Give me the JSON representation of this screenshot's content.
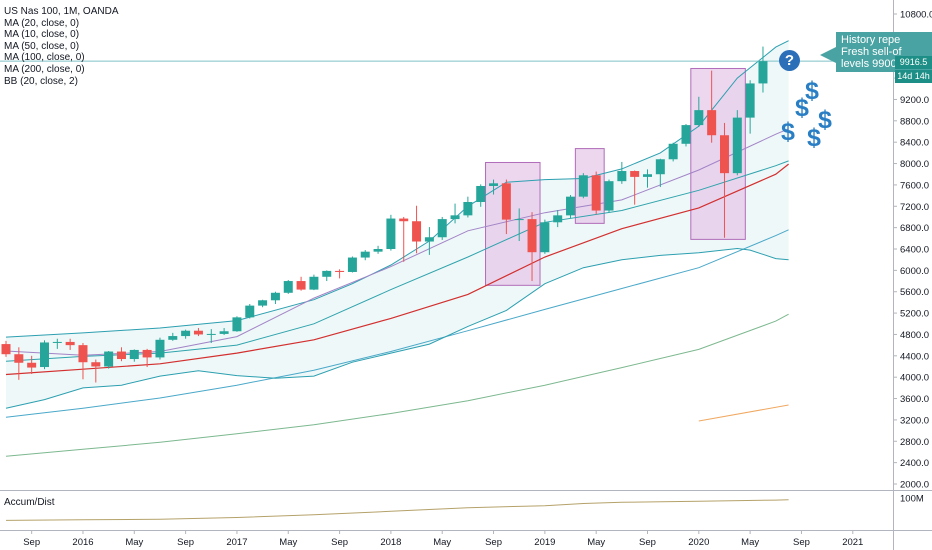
{
  "legend": [
    "US Nas 100, 1M, OANDA",
    "MA (20, close, 0)",
    "MA (10, close, 0)",
    "MA (50, close, 0)",
    "MA (100, close, 0)",
    "MA (200, close, 0)",
    "BB (20, close, 2)"
  ],
  "indicator_title": "Accum/Dist",
  "annotation_text": [
    "History repe",
    "Fresh sell-of",
    "levels 9900"
  ],
  "price_badge": "9916.5",
  "timer_badge": "14d 14h",
  "question_icon": "?",
  "dollar_glyph": "$",
  "colors": {
    "up": "#26a69a",
    "down": "#ef5350",
    "ma20": "#2fa3ad",
    "ma10": "#a283c7",
    "ma50": "#d32f2f",
    "ma100": "#4aa8c9",
    "ma200": "#7cb88f",
    "bb": "#2c9fb0",
    "bb_fill": "#eef8f8",
    "highlight_fill": "#e6c9ea",
    "highlight_stroke": "#b06bb8",
    "accum": "#b5a26a",
    "icon": "#2a7fc4"
  },
  "chart_data": {
    "type": "candlestick",
    "y_ticks": [
      2000,
      2400,
      2800,
      3200,
      3600,
      4000,
      4400,
      4800,
      5200,
      5600,
      6000,
      6400,
      6800,
      7200,
      7600,
      8000,
      8400,
      8800,
      9200,
      9600,
      10000,
      10400,
      10800
    ],
    "ylim": [
      1800,
      10900
    ],
    "x_ticks": [
      "Sep",
      "2016",
      "May",
      "Sep",
      "2017",
      "May",
      "Sep",
      "2018",
      "May",
      "Sep",
      "2019",
      "May",
      "Sep",
      "2020",
      "May",
      "Sep",
      "2021"
    ],
    "x_tick_months": [
      "2015-09",
      "2016-01",
      "2016-05",
      "2016-09",
      "2017-01",
      "2017-05",
      "2017-09",
      "2018-01",
      "2018-05",
      "2018-09",
      "2019-01",
      "2019-05",
      "2019-09",
      "2020-01",
      "2020-05",
      "2020-09",
      "2021-01"
    ],
    "candles": [
      {
        "month": "2015-07",
        "o": 4620,
        "h": 4680,
        "l": 4380,
        "c": 4430
      },
      {
        "month": "2015-08",
        "o": 4430,
        "h": 4560,
        "l": 3950,
        "c": 4270
      },
      {
        "month": "2015-09",
        "o": 4270,
        "h": 4400,
        "l": 4060,
        "c": 4180
      },
      {
        "month": "2015-10",
        "o": 4190,
        "h": 4690,
        "l": 4150,
        "c": 4650
      },
      {
        "month": "2015-11",
        "o": 4650,
        "h": 4720,
        "l": 4530,
        "c": 4660
      },
      {
        "month": "2015-12",
        "o": 4660,
        "h": 4720,
        "l": 4510,
        "c": 4600
      },
      {
        "month": "2016-01",
        "o": 4600,
        "h": 4640,
        "l": 3960,
        "c": 4280
      },
      {
        "month": "2016-02",
        "o": 4280,
        "h": 4330,
        "l": 3900,
        "c": 4200
      },
      {
        "month": "2016-03",
        "o": 4200,
        "h": 4490,
        "l": 4160,
        "c": 4480
      },
      {
        "month": "2016-04",
        "o": 4480,
        "h": 4560,
        "l": 4300,
        "c": 4340
      },
      {
        "month": "2016-05",
        "o": 4340,
        "h": 4520,
        "l": 4290,
        "c": 4510
      },
      {
        "month": "2016-06",
        "o": 4510,
        "h": 4530,
        "l": 4190,
        "c": 4370
      },
      {
        "month": "2016-07",
        "o": 4370,
        "h": 4740,
        "l": 4330,
        "c": 4700
      },
      {
        "month": "2016-08",
        "o": 4700,
        "h": 4830,
        "l": 4680,
        "c": 4770
      },
      {
        "month": "2016-09",
        "o": 4770,
        "h": 4890,
        "l": 4720,
        "c": 4870
      },
      {
        "month": "2016-10",
        "o": 4870,
        "h": 4920,
        "l": 4770,
        "c": 4800
      },
      {
        "month": "2016-11",
        "o": 4800,
        "h": 4900,
        "l": 4640,
        "c": 4810
      },
      {
        "month": "2016-12",
        "o": 4810,
        "h": 4920,
        "l": 4790,
        "c": 4860
      },
      {
        "month": "2017-01",
        "o": 4860,
        "h": 5140,
        "l": 4850,
        "c": 5120
      },
      {
        "month": "2017-02",
        "o": 5120,
        "h": 5370,
        "l": 5100,
        "c": 5340
      },
      {
        "month": "2017-03",
        "o": 5340,
        "h": 5450,
        "l": 5310,
        "c": 5440
      },
      {
        "month": "2017-04",
        "o": 5440,
        "h": 5600,
        "l": 5370,
        "c": 5580
      },
      {
        "month": "2017-05",
        "o": 5580,
        "h": 5820,
        "l": 5560,
        "c": 5800
      },
      {
        "month": "2017-06",
        "o": 5800,
        "h": 5880,
        "l": 5620,
        "c": 5640
      },
      {
        "month": "2017-07",
        "o": 5640,
        "h": 5920,
        "l": 5630,
        "c": 5880
      },
      {
        "month": "2017-08",
        "o": 5880,
        "h": 6000,
        "l": 5800,
        "c": 5990
      },
      {
        "month": "2017-09",
        "o": 5990,
        "h": 6020,
        "l": 5850,
        "c": 5970
      },
      {
        "month": "2017-10",
        "o": 5970,
        "h": 6260,
        "l": 5960,
        "c": 6240
      },
      {
        "month": "2017-11",
        "o": 6240,
        "h": 6380,
        "l": 6190,
        "c": 6350
      },
      {
        "month": "2017-12",
        "o": 6350,
        "h": 6460,
        "l": 6310,
        "c": 6400
      },
      {
        "month": "2018-01",
        "o": 6400,
        "h": 7040,
        "l": 6370,
        "c": 6970
      },
      {
        "month": "2018-02",
        "o": 6970,
        "h": 7000,
        "l": 6160,
        "c": 6920
      },
      {
        "month": "2018-03",
        "o": 6920,
        "h": 7210,
        "l": 6320,
        "c": 6540
      },
      {
        "month": "2018-04",
        "o": 6540,
        "h": 6810,
        "l": 6290,
        "c": 6620
      },
      {
        "month": "2018-05",
        "o": 6620,
        "h": 7000,
        "l": 6570,
        "c": 6960
      },
      {
        "month": "2018-06",
        "o": 6960,
        "h": 7250,
        "l": 6880,
        "c": 7030
      },
      {
        "month": "2018-07",
        "o": 7030,
        "h": 7380,
        "l": 6990,
        "c": 7280
      },
      {
        "month": "2018-08",
        "o": 7280,
        "h": 7610,
        "l": 7190,
        "c": 7580
      },
      {
        "month": "2018-09",
        "o": 7580,
        "h": 7700,
        "l": 7420,
        "c": 7630
      },
      {
        "month": "2018-10",
        "o": 7630,
        "h": 7700,
        "l": 6680,
        "c": 6950
      },
      {
        "month": "2018-11",
        "o": 6950,
        "h": 7160,
        "l": 6550,
        "c": 6960
      },
      {
        "month": "2018-12",
        "o": 6960,
        "h": 7090,
        "l": 5800,
        "c": 6340
      },
      {
        "month": "2019-01",
        "o": 6340,
        "h": 6950,
        "l": 6310,
        "c": 6900
      },
      {
        "month": "2019-02",
        "o": 6900,
        "h": 7130,
        "l": 6810,
        "c": 7030
      },
      {
        "month": "2019-03",
        "o": 7030,
        "h": 7410,
        "l": 6970,
        "c": 7380
      },
      {
        "month": "2019-04",
        "o": 7380,
        "h": 7820,
        "l": 7350,
        "c": 7780
      },
      {
        "month": "2019-05",
        "o": 7780,
        "h": 7850,
        "l": 7050,
        "c": 7120
      },
      {
        "month": "2019-06",
        "o": 7120,
        "h": 7700,
        "l": 7090,
        "c": 7670
      },
      {
        "month": "2019-07",
        "o": 7670,
        "h": 8030,
        "l": 7620,
        "c": 7860
      },
      {
        "month": "2019-08",
        "o": 7860,
        "h": 7870,
        "l": 7230,
        "c": 7750
      },
      {
        "month": "2019-09",
        "o": 7750,
        "h": 7890,
        "l": 7550,
        "c": 7800
      },
      {
        "month": "2019-10",
        "o": 7800,
        "h": 8090,
        "l": 7560,
        "c": 8080
      },
      {
        "month": "2019-11",
        "o": 8080,
        "h": 8390,
        "l": 8040,
        "c": 8370
      },
      {
        "month": "2019-12",
        "o": 8370,
        "h": 8740,
        "l": 8320,
        "c": 8720
      },
      {
        "month": "2020-01",
        "o": 8720,
        "h": 9250,
        "l": 8690,
        "c": 9000
      },
      {
        "month": "2020-02",
        "o": 9000,
        "h": 9740,
        "l": 8390,
        "c": 8530
      },
      {
        "month": "2020-03",
        "o": 8530,
        "h": 8760,
        "l": 6610,
        "c": 7820
      },
      {
        "month": "2020-04",
        "o": 7820,
        "h": 9000,
        "l": 7780,
        "c": 8860
      },
      {
        "month": "2020-05",
        "o": 8860,
        "h": 9560,
        "l": 8560,
        "c": 9500
      },
      {
        "month": "2020-06",
        "o": 9500,
        "h": 10190,
        "l": 9330,
        "c": 9916.5
      }
    ],
    "highlight_boxes": [
      {
        "from": "2018-09",
        "to": "2018-12",
        "ymin": 5720,
        "ymax": 8020
      },
      {
        "from": "2019-04",
        "to": "2019-05",
        "ymin": 6880,
        "ymax": 8280
      },
      {
        "from": "2020-01",
        "to": "2020-04",
        "ymin": 6580,
        "ymax": 9780
      }
    ],
    "price_line": 9916.5,
    "ma10": [
      [
        0,
        4490
      ],
      [
        6,
        4410
      ],
      [
        12,
        4480
      ],
      [
        18,
        4760
      ],
      [
        24,
        5480
      ],
      [
        30,
        6070
      ],
      [
        36,
        6740
      ],
      [
        42,
        7080
      ],
      [
        48,
        7320
      ],
      [
        54,
        7880
      ],
      [
        60,
        8550
      ],
      [
        61,
        8650
      ]
    ],
    "ma20": [
      [
        0,
        4300
      ],
      [
        6,
        4390
      ],
      [
        12,
        4450
      ],
      [
        18,
        4600
      ],
      [
        24,
        5000
      ],
      [
        30,
        5640
      ],
      [
        36,
        6250
      ],
      [
        42,
        6900
      ],
      [
        48,
        7120
      ],
      [
        54,
        7500
      ],
      [
        60,
        7960
      ],
      [
        61,
        8050
      ]
    ],
    "ma50": [
      [
        0,
        4050
      ],
      [
        6,
        4150
      ],
      [
        12,
        4250
      ],
      [
        18,
        4450
      ],
      [
        24,
        4700
      ],
      [
        30,
        5100
      ],
      [
        36,
        5550
      ],
      [
        42,
        6250
      ],
      [
        48,
        6780
      ],
      [
        54,
        7170
      ],
      [
        60,
        7800
      ],
      [
        61,
        7990
      ]
    ],
    "ma100": [
      [
        0,
        3250
      ],
      [
        6,
        3420
      ],
      [
        12,
        3610
      ],
      [
        18,
        3850
      ],
      [
        24,
        4130
      ],
      [
        30,
        4480
      ],
      [
        36,
        4870
      ],
      [
        42,
        5270
      ],
      [
        48,
        5660
      ],
      [
        54,
        6050
      ],
      [
        60,
        6650
      ],
      [
        61,
        6760
      ]
    ],
    "ma200": [
      [
        0,
        2520
      ],
      [
        6,
        2650
      ],
      [
        12,
        2780
      ],
      [
        18,
        2940
      ],
      [
        24,
        3110
      ],
      [
        30,
        3320
      ],
      [
        36,
        3560
      ],
      [
        42,
        3850
      ],
      [
        48,
        4180
      ],
      [
        54,
        4520
      ],
      [
        60,
        5050
      ],
      [
        61,
        5180
      ]
    ],
    "ma_orange": [
      [
        54,
        3180
      ],
      [
        61,
        3480
      ]
    ],
    "bb_upper": [
      [
        0,
        4750
      ],
      [
        6,
        4830
      ],
      [
        12,
        4920
      ],
      [
        18,
        5060
      ],
      [
        24,
        5450
      ],
      [
        27,
        5750
      ],
      [
        30,
        6100
      ],
      [
        33,
        6550
      ],
      [
        36,
        7200
      ],
      [
        39,
        7650
      ],
      [
        42,
        7700
      ],
      [
        45,
        7720
      ],
      [
        48,
        7900
      ],
      [
        51,
        8200
      ],
      [
        54,
        8700
      ],
      [
        57,
        9600
      ],
      [
        60,
        10180
      ],
      [
        61,
        10300
      ]
    ],
    "bb_lower": [
      [
        0,
        3420
      ],
      [
        3,
        3580
      ],
      [
        6,
        3800
      ],
      [
        9,
        3850
      ],
      [
        12,
        4020
      ],
      [
        15,
        4120
      ],
      [
        18,
        4030
      ],
      [
        21,
        3980
      ],
      [
        24,
        4020
      ],
      [
        27,
        4280
      ],
      [
        30,
        4450
      ],
      [
        33,
        4620
      ],
      [
        36,
        4950
      ],
      [
        39,
        5250
      ],
      [
        42,
        5750
      ],
      [
        45,
        6050
      ],
      [
        48,
        6200
      ],
      [
        51,
        6280
      ],
      [
        54,
        6330
      ],
      [
        57,
        6410
      ],
      [
        58,
        6380
      ],
      [
        60,
        6220
      ],
      [
        61,
        6200
      ]
    ],
    "accum_dist": [
      [
        0,
        20
      ],
      [
        6,
        22
      ],
      [
        12,
        24
      ],
      [
        18,
        30
      ],
      [
        24,
        40
      ],
      [
        30,
        52
      ],
      [
        36,
        65
      ],
      [
        42,
        72
      ],
      [
        45,
        80
      ],
      [
        48,
        84
      ],
      [
        54,
        88
      ],
      [
        60,
        92
      ],
      [
        61,
        93
      ]
    ],
    "accum_ylim": [
      0,
      110
    ],
    "accum_ticks": [
      "100M"
    ]
  }
}
